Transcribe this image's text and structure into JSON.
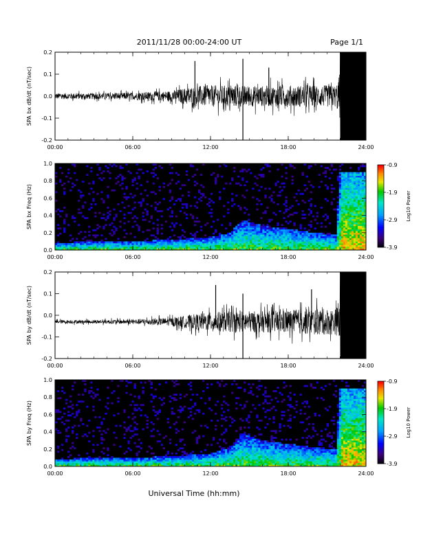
{
  "header": {
    "title": "2011/11/28   00:00-24:00 UT",
    "page": "Page 1/1"
  },
  "xaxis": {
    "label": "Universal Time (hh:mm)",
    "ticks": [
      "00:00",
      "06:00",
      "12:00",
      "18:00",
      "24:00"
    ],
    "range_hours": [
      0,
      24
    ]
  },
  "colorbar": {
    "label": "Log10 Power",
    "ticks": [
      "-0.9",
      "-1.9",
      "-2.9",
      "-3.9"
    ],
    "range": [
      -3.9,
      -0.9
    ]
  },
  "chart_data": [
    {
      "type": "line",
      "ylabel": "SPA bx dB/dt (nT/sec)",
      "ylim": [
        -0.2,
        0.2
      ],
      "yticks": [
        "0.2",
        "0.1",
        "0.0",
        "-0.1",
        "-0.2"
      ],
      "x_units": "hours UT",
      "offset": 0.0,
      "envelope": {
        "x": [
          0,
          3,
          6,
          9,
          10.5,
          12,
          14,
          16,
          18,
          20,
          21.7,
          22,
          24
        ],
        "amplitude": [
          0.025,
          0.025,
          0.03,
          0.045,
          0.08,
          0.09,
          0.09,
          0.085,
          0.09,
          0.09,
          0.09,
          0.2,
          0.2
        ]
      },
      "spikes": [
        {
          "x": 14.5,
          "y": -0.2
        },
        {
          "x": 14.5,
          "y": 0.17
        },
        {
          "x": 10.8,
          "y": 0.16
        },
        {
          "x": 16.5,
          "y": 0.13
        }
      ]
    },
    {
      "type": "heatmap",
      "ylabel": "SPA bx Freq (Hz)",
      "ylim": [
        0.0,
        1.0
      ],
      "yticks": [
        "1.0",
        "0.8",
        "0.6",
        "0.4",
        "0.2",
        "0.0"
      ],
      "x_units": "hours UT",
      "color_range": [
        -3.9,
        -0.9
      ],
      "band_top": {
        "x": [
          0,
          3,
          6,
          9,
          12,
          13.5,
          14.5,
          16,
          18,
          20,
          21.7,
          22,
          24
        ],
        "freq": [
          0.08,
          0.1,
          0.1,
          0.12,
          0.15,
          0.2,
          0.35,
          0.28,
          0.25,
          0.2,
          0.18,
          0.9,
          0.9
        ]
      }
    },
    {
      "type": "line",
      "ylabel": "SPA by dB/dt (nT/sec)",
      "ylim": [
        -0.2,
        0.2
      ],
      "yticks": [
        "0.2",
        "0.1",
        "0.0",
        "-0.1",
        "-0.2"
      ],
      "x_units": "hours UT",
      "offset": -0.03,
      "envelope": {
        "x": [
          0,
          3,
          6,
          9,
          10.5,
          12,
          14,
          16,
          18,
          20,
          21.7,
          22,
          24
        ],
        "amplitude": [
          0.015,
          0.015,
          0.02,
          0.035,
          0.06,
          0.08,
          0.09,
          0.09,
          0.1,
          0.11,
          0.11,
          0.2,
          0.2
        ]
      },
      "spikes": [
        {
          "x": 14.5,
          "y": -0.2
        },
        {
          "x": 14.5,
          "y": 0.1
        },
        {
          "x": 12.4,
          "y": 0.14
        },
        {
          "x": 19.8,
          "y": 0.12
        }
      ]
    },
    {
      "type": "heatmap",
      "ylabel": "SPA by Freq (Hz)",
      "ylim": [
        0.0,
        1.0
      ],
      "yticks": [
        "1.0",
        "0.8",
        "0.6",
        "0.4",
        "0.2",
        "0.0"
      ],
      "x_units": "hours UT",
      "color_range": [
        -3.9,
        -0.9
      ],
      "band_top": {
        "x": [
          0,
          3,
          6,
          9,
          12,
          13.5,
          14.5,
          16,
          18,
          20,
          21.7,
          22,
          24
        ],
        "freq": [
          0.08,
          0.1,
          0.1,
          0.12,
          0.15,
          0.22,
          0.38,
          0.3,
          0.26,
          0.22,
          0.2,
          0.9,
          0.9
        ]
      }
    }
  ]
}
